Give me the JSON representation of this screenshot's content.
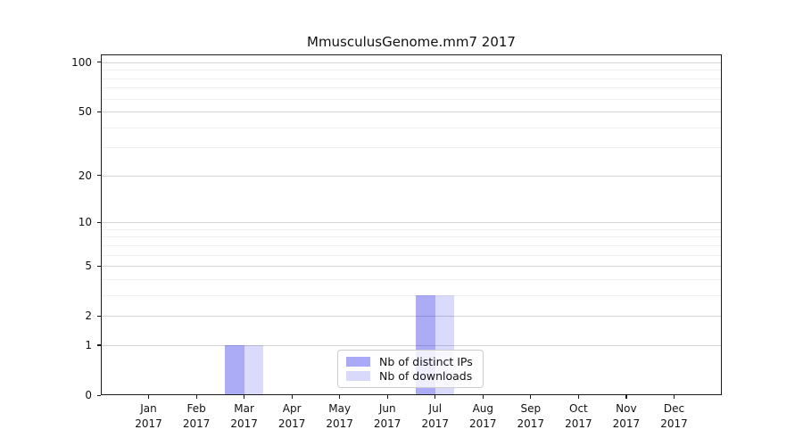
{
  "chart_data": {
    "type": "bar",
    "title": "MmusculusGenome.mm7 2017",
    "categories": [
      "Jan 2017",
      "Feb 2017",
      "Mar 2017",
      "Apr 2017",
      "May 2017",
      "Jun 2017",
      "Jul 2017",
      "Aug 2017",
      "Sep 2017",
      "Oct 2017",
      "Nov 2017",
      "Dec 2017"
    ],
    "series": [
      {
        "name": "Nb of distinct IPs",
        "values": [
          0,
          0,
          1,
          0,
          0,
          0,
          3,
          0,
          0,
          0,
          0,
          0
        ],
        "color": "#a9a9f7",
        "fill_rgba": "rgba(10,10,228,0.34)"
      },
      {
        "name": "Nb of downloads",
        "values": [
          0,
          0,
          1,
          0,
          0,
          0,
          3,
          0,
          0,
          0,
          0,
          0
        ],
        "color": "#d9d9fa",
        "fill_rgba": "rgba(10,10,228,0.15)"
      }
    ],
    "xlabel": "",
    "ylabel": "",
    "yscale": "log1p",
    "ylim": [
      0,
      110
    ],
    "yticks": [
      0,
      1,
      2,
      5,
      10,
      20,
      50,
      100
    ],
    "ytick_labels": [
      "0",
      "1",
      "2",
      "5",
      "10",
      "20",
      "50",
      "100"
    ],
    "minor_yticks": [
      3,
      4,
      6,
      7,
      8,
      9,
      30,
      40,
      60,
      70,
      80,
      90
    ],
    "grid": "horizontal",
    "legend_position": "lower center inside"
  },
  "legend": {
    "items": [
      {
        "label": "Nb of distinct IPs",
        "color": "#a9a9f7"
      },
      {
        "label": "Nb of downloads",
        "color": "#d9d9fa"
      }
    ]
  },
  "colors": {
    "background": "#ffffff",
    "frame": "#1a1a1a",
    "grid_major": "#d4d4d4",
    "grid_minor": "#f0f0f0",
    "text": "#111111",
    "legend_border": "#cccccc",
    "legend_background": "rgba(255,255,255,0.8)"
  }
}
